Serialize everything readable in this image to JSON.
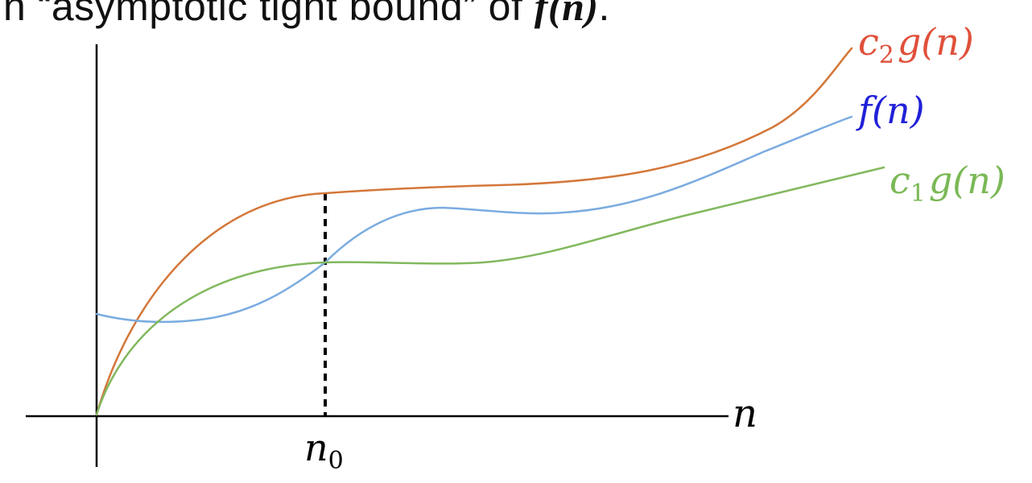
{
  "caption": {
    "prefix": "n “asymptotic tight bound” of ",
    "function": "f(n)",
    "suffix": "."
  },
  "colors": {
    "upper": "#d4773a",
    "upper_label": "#e0503a",
    "middle": "#7aace0",
    "middle_label": "#2020d8",
    "lower": "#82b85e",
    "lower_label": "#7ab855",
    "axis": "#000000",
    "marker": "#000000"
  },
  "labels": {
    "upper": {
      "base": "c",
      "sub": "2",
      "rest": "g(n)"
    },
    "middle": {
      "text": "f(n)"
    },
    "lower": {
      "base": "c",
      "sub": "1",
      "rest": "g(n)"
    },
    "x_axis": {
      "text": "n"
    },
    "threshold": {
      "base": "n",
      "sub": "0"
    }
  }
}
